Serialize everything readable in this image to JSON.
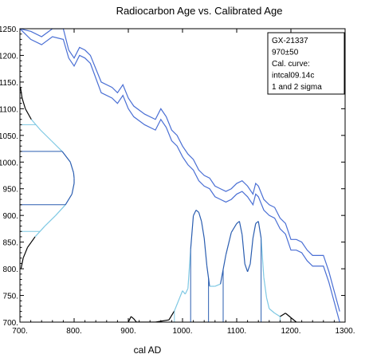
{
  "chart_data": {
    "type": "line",
    "title": "Radiocarbon Age vs. Calibrated Age",
    "xlabel": "cal AD",
    "ylabel": "",
    "xlim": [
      700,
      1300
    ],
    "ylim": [
      700,
      1250
    ],
    "xticks": [
      700,
      800,
      900,
      1000,
      1100,
      1200,
      1300
    ],
    "xtick_labels": [
      "700.",
      "800.",
      "900.",
      "1000.",
      "1100.",
      "1200.",
      "1300."
    ],
    "yticks": [
      700,
      750,
      800,
      850,
      900,
      950,
      1000,
      1050,
      1100,
      1150,
      1200,
      1250
    ],
    "ytick_labels": [
      "700.",
      "750.",
      "800.",
      "850.",
      "900.",
      "950.",
      "1000.",
      "1050.",
      "1100.",
      "1150.",
      "1200.",
      "1250."
    ],
    "grid": false,
    "legend": {
      "position": "top-right",
      "lines": [
        "GX-21337",
        "970±50",
        "Cal. curve:",
        "intcal09.14c",
        "1 and 2 sigma"
      ]
    },
    "colors": {
      "calibration_curve": "#4a6fd4",
      "probability_fill": "#7ec8e3",
      "probability_outline": "#000000",
      "sigma1": "#2a5db0",
      "sigma2": "#7ec8e3",
      "range_bars": "#2a5db0"
    },
    "calibration_curve_upper": {
      "x": [
        700,
        720,
        740,
        760,
        780,
        790,
        800,
        810,
        820,
        830,
        850,
        870,
        880,
        890,
        900,
        910,
        930,
        950,
        960,
        970,
        980,
        990,
        1000,
        1010,
        1020,
        1030,
        1040,
        1050,
        1060,
        1070,
        1080,
        1090,
        1100,
        1110,
        1120,
        1130,
        1135,
        1140,
        1150,
        1160,
        1170,
        1180,
        1190,
        1200,
        1210,
        1220,
        1230,
        1240,
        1250,
        1260,
        1270,
        1290
      ],
      "y": [
        1250,
        1245,
        1235,
        1250,
        1250,
        1210,
        1195,
        1215,
        1210,
        1200,
        1150,
        1140,
        1130,
        1145,
        1120,
        1105,
        1090,
        1080,
        1100,
        1085,
        1060,
        1050,
        1030,
        1015,
        1005,
        985,
        975,
        970,
        955,
        950,
        945,
        950,
        960,
        965,
        955,
        940,
        960,
        955,
        930,
        920,
        915,
        895,
        885,
        855,
        855,
        850,
        835,
        825,
        825,
        825,
        795,
        720
      ]
    },
    "calibration_curve_lower": {
      "x": [
        700,
        720,
        740,
        760,
        780,
        790,
        800,
        810,
        820,
        830,
        850,
        870,
        880,
        890,
        900,
        910,
        930,
        950,
        960,
        970,
        980,
        990,
        1000,
        1010,
        1020,
        1030,
        1040,
        1050,
        1060,
        1070,
        1080,
        1090,
        1100,
        1110,
        1120,
        1130,
        1135,
        1140,
        1150,
        1160,
        1170,
        1180,
        1190,
        1200,
        1210,
        1220,
        1230,
        1240,
        1250,
        1260,
        1270,
        1290
      ],
      "y": [
        1250,
        1230,
        1220,
        1235,
        1230,
        1195,
        1180,
        1200,
        1195,
        1185,
        1130,
        1120,
        1110,
        1125,
        1100,
        1085,
        1070,
        1060,
        1080,
        1065,
        1040,
        1030,
        1010,
        995,
        985,
        965,
        955,
        950,
        935,
        930,
        925,
        930,
        940,
        945,
        935,
        920,
        940,
        935,
        910,
        900,
        895,
        875,
        865,
        835,
        835,
        830,
        815,
        805,
        805,
        805,
        775,
        700
      ]
    },
    "radiocarbon_distribution": {
      "y": [
        800,
        820,
        840,
        860,
        880,
        900,
        920,
        940,
        960,
        970,
        980,
        1000,
        1020,
        1040,
        1060,
        1080,
        1100,
        1120,
        1140
      ],
      "density": [
        0.02,
        0.06,
        0.14,
        0.28,
        0.46,
        0.66,
        0.84,
        0.96,
        1.0,
        1.0,
        0.99,
        0.93,
        0.78,
        0.58,
        0.38,
        0.21,
        0.1,
        0.04,
        0.01
      ]
    },
    "radiocarbon_sigma1_bounds": [
      920,
      1020
    ],
    "radiocarbon_sigma2_bounds": [
      870,
      1070
    ],
    "calibrated_distribution": {
      "x": [
        900,
        905,
        910,
        915,
        950,
        975,
        985,
        995,
        1000,
        1005,
        1010,
        1015,
        1020,
        1025,
        1030,
        1035,
        1040,
        1045,
        1050,
        1060,
        1070,
        1080,
        1090,
        1100,
        1105,
        1110,
        1115,
        1120,
        1125,
        1130,
        1135,
        1140,
        1145,
        1150,
        1155,
        1160,
        1170,
        1180,
        1190,
        1200,
        1210
      ],
      "density": [
        0.0,
        0.05,
        0.03,
        0.0,
        0.0,
        0.02,
        0.1,
        0.22,
        0.28,
        0.25,
        0.3,
        0.65,
        0.95,
        1.0,
        0.98,
        0.9,
        0.75,
        0.5,
        0.32,
        0.32,
        0.34,
        0.6,
        0.8,
        0.88,
        0.9,
        0.78,
        0.52,
        0.45,
        0.52,
        0.75,
        0.88,
        0.9,
        0.75,
        0.4,
        0.22,
        0.12,
        0.08,
        0.05,
        0.08,
        0.04,
        0.0
      ]
    },
    "calibrated_sigma1_ranges": [
      [
        1015,
        1048
      ],
      [
        1075,
        1145
      ]
    ],
    "calibrated_sigma2_ranges": [
      [
        985,
        1180
      ]
    ]
  }
}
